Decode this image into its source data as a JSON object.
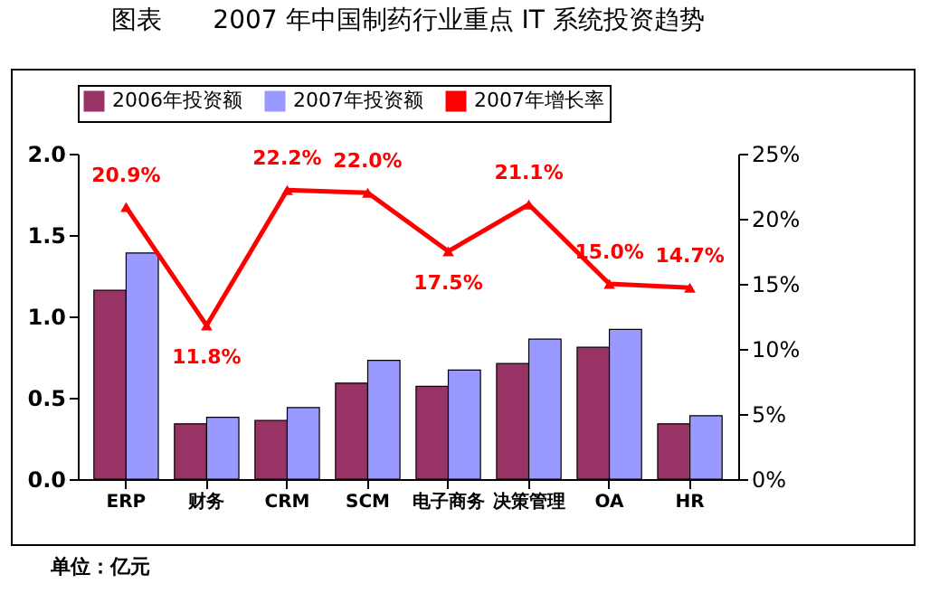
{
  "chart_data": {
    "type": "bar",
    "title": "图表　　2007 年中国制药行业重点 IT 系统投资趋势",
    "categories": [
      "ERP",
      "财务",
      "CRM",
      "SCM",
      "电子商务",
      "决策管理",
      "OA",
      "HR"
    ],
    "series": [
      {
        "name": "2006年投资额",
        "color": "#993366",
        "values": [
          1.16,
          0.34,
          0.36,
          0.59,
          0.57,
          0.71,
          0.81,
          0.34
        ]
      },
      {
        "name": "2007年投资额",
        "color": "#9999ff",
        "values": [
          1.39,
          0.38,
          0.44,
          0.73,
          0.67,
          0.86,
          0.92,
          0.39
        ]
      },
      {
        "name": "2007年增长率",
        "type": "line",
        "axis": "y2",
        "color": "#ff0000",
        "marker": "triangle",
        "values": [
          20.9,
          11.8,
          22.2,
          22.0,
          17.5,
          21.1,
          15.0,
          14.7
        ],
        "value_labels": [
          "20.9%",
          "11.8%",
          "22.2%",
          "22.0%",
          "17.5%",
          "21.1%",
          "15.0%",
          "14.7%"
        ]
      }
    ],
    "ylim": [
      0,
      2.0
    ],
    "yticks": [
      {
        "value": 0,
        "label": "0.0"
      },
      {
        "value": 0.5,
        "label": "0.5"
      },
      {
        "value": 1,
        "label": "1.0"
      },
      {
        "value": 1.5,
        "label": "1.5"
      },
      {
        "value": 2,
        "label": "2.0"
      }
    ],
    "y2lim": [
      0,
      25
    ],
    "y2ticks": [
      {
        "value": 0,
        "label": "0%"
      },
      {
        "value": 5,
        "label": "5%"
      },
      {
        "value": 10,
        "label": "10%"
      },
      {
        "value": 15,
        "label": "15%"
      },
      {
        "value": 20,
        "label": "20%"
      },
      {
        "value": 25,
        "label": "25%"
      }
    ],
    "legend": "top",
    "grid": false,
    "annotations": [
      "单位：亿元"
    ]
  }
}
